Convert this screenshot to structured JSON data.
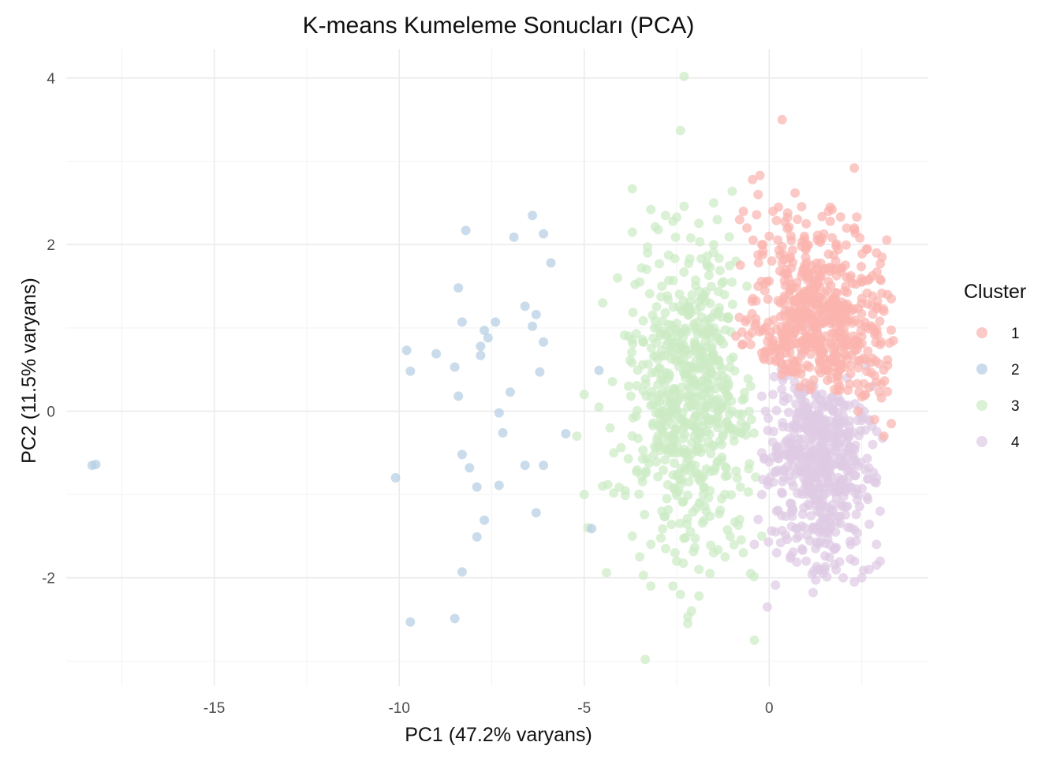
{
  "chart_data": {
    "type": "scatter",
    "title": "K-means Kumeleme Sonucları (PCA)",
    "xlabel": "PC1 (47.2% varyans)",
    "ylabel": "PC2 (11.5% varyans)",
    "xlim": [
      -19,
      4.3
    ],
    "ylim": [
      -3.3,
      4.35
    ],
    "x_ticks": [
      -15,
      -10,
      -5,
      0
    ],
    "y_ticks": [
      -2,
      0,
      2,
      4
    ],
    "x_tick_labels": [
      "-15",
      "-10",
      "-5",
      "0"
    ],
    "y_tick_labels": [
      "-2",
      "0",
      "2",
      "4"
    ],
    "grid": true,
    "legend": {
      "title": "Cluster",
      "position": "right"
    },
    "point_alpha": 0.7,
    "series": [
      {
        "name": "1",
        "color": "#fbb4ae",
        "points": [
          [
            0.35,
            3.5
          ],
          [
            2.3,
            2.92
          ],
          [
            -0.25,
            2.83
          ],
          [
            0.7,
            2.62
          ],
          [
            -0.45,
            2.78
          ],
          [
            1.65,
            2.45
          ],
          [
            1.7,
            2.42
          ],
          [
            1.6,
            2.4
          ],
          [
            1.65,
            2.28
          ],
          [
            2.3,
            2.2
          ],
          [
            1.0,
            2.25
          ],
          [
            0.95,
            2.1
          ],
          [
            1.3,
            2.06
          ],
          [
            2.45,
            2.08
          ],
          [
            2.65,
            1.95
          ],
          [
            2.9,
            1.9
          ],
          [
            3.05,
            1.85
          ],
          [
            -0.6,
            2.2
          ],
          [
            -0.8,
            2.3
          ],
          [
            -0.7,
            2.4
          ],
          [
            0.1,
            2.4
          ],
          [
            0.25,
            2.45
          ],
          [
            0.5,
            2.38
          ],
          [
            -0.3,
            2.6
          ],
          [
            0.0,
            2.1
          ],
          [
            -0.2,
            2.0
          ],
          [
            0.6,
            2.05
          ],
          [
            1.25,
            1.7
          ],
          [
            2.5,
            1.55
          ],
          [
            3.2,
            1.4
          ],
          [
            3.3,
            1.35
          ],
          [
            3.1,
            1.2
          ],
          [
            0.4,
            1.82
          ],
          [
            1.8,
            1.8
          ],
          [
            2.0,
            1.2
          ],
          [
            2.8,
            1.0
          ],
          [
            2.6,
            0.62
          ],
          [
            3.2,
            0.55
          ],
          [
            2.6,
            0.2
          ],
          [
            2.9,
            0.35
          ],
          [
            2.85,
            -0.1
          ],
          [
            3.3,
            -0.15
          ],
          [
            3.1,
            -0.3
          ],
          [
            0.0,
            0.9
          ],
          [
            -0.2,
            0.7
          ],
          [
            -0.5,
            0.8
          ],
          [
            -0.9,
            0.9
          ],
          [
            1.2,
            1.1
          ],
          [
            0.9,
            0.85
          ],
          [
            1.4,
            0.7
          ],
          [
            1.8,
            0.6
          ],
          [
            2.2,
            0.45
          ],
          [
            1.9,
            0.3
          ],
          [
            2.4,
            0.0
          ],
          [
            0.5,
            0.95
          ],
          [
            0.3,
            1.3
          ],
          [
            -0.3,
            1.5
          ],
          [
            -0.6,
            1.1
          ],
          [
            2.1,
            0.85
          ],
          [
            3.0,
            0.8
          ]
        ],
        "cloud": {
          "x": [
            -0.9,
            3.3
          ],
          "y": [
            -0.4,
            2.3
          ],
          "n": 540,
          "boundary": "right-of-3-above-4",
          "seed": 11
        }
      },
      {
        "name": "2",
        "color": "#b3cde3",
        "points": [
          [
            -18.3,
            -0.65
          ],
          [
            -18.2,
            -0.64
          ],
          [
            -6.4,
            2.35
          ],
          [
            -8.2,
            2.17
          ],
          [
            -6.1,
            2.13
          ],
          [
            -6.9,
            2.09
          ],
          [
            -5.9,
            1.78
          ],
          [
            -8.4,
            1.48
          ],
          [
            -6.6,
            1.26
          ],
          [
            -6.3,
            1.16
          ],
          [
            -7.4,
            1.07
          ],
          [
            -8.3,
            1.07
          ],
          [
            -6.4,
            1.02
          ],
          [
            -7.7,
            0.97
          ],
          [
            -7.6,
            0.88
          ],
          [
            -6.1,
            0.83
          ],
          [
            -7.8,
            0.78
          ],
          [
            -9.8,
            0.73
          ],
          [
            -9.0,
            0.69
          ],
          [
            -7.8,
            0.67
          ],
          [
            -8.5,
            0.53
          ],
          [
            -4.6,
            0.49
          ],
          [
            -6.2,
            0.47
          ],
          [
            -9.7,
            0.48
          ],
          [
            -7.0,
            0.23
          ],
          [
            -8.4,
            0.18
          ],
          [
            -7.3,
            -0.02
          ],
          [
            -7.2,
            -0.26
          ],
          [
            -5.5,
            -0.27
          ],
          [
            -8.3,
            -0.52
          ],
          [
            -6.6,
            -0.65
          ],
          [
            -6.1,
            -0.65
          ],
          [
            -8.1,
            -0.68
          ],
          [
            -10.1,
            -0.8
          ],
          [
            -7.3,
            -0.89
          ],
          [
            -7.9,
            -0.91
          ],
          [
            -7.7,
            -1.31
          ],
          [
            -6.3,
            -1.22
          ],
          [
            -4.8,
            -1.41
          ],
          [
            -7.9,
            -1.51
          ],
          [
            -8.3,
            -1.93
          ],
          [
            -8.5,
            -2.49
          ],
          [
            -9.7,
            -2.53
          ]
        ]
      },
      {
        "name": "3",
        "color": "#ccebc5",
        "points": [
          [
            -2.3,
            4.02
          ],
          [
            -2.4,
            3.37
          ],
          [
            -3.7,
            2.67
          ],
          [
            -1.0,
            2.64
          ],
          [
            -2.3,
            2.46
          ],
          [
            -1.5,
            2.5
          ],
          [
            -3.2,
            2.42
          ],
          [
            -2.8,
            2.35
          ],
          [
            -2.5,
            2.33
          ],
          [
            -2.6,
            2.28
          ],
          [
            -1.4,
            2.3
          ],
          [
            -3.0,
            2.18
          ],
          [
            -3.7,
            2.15
          ],
          [
            -1.5,
            2.0
          ],
          [
            -4.1,
            1.6
          ],
          [
            -3.5,
            1.55
          ],
          [
            -2.9,
            1.5
          ],
          [
            -4.5,
            1.3
          ],
          [
            -3.1,
            1.0
          ],
          [
            -3.8,
            0.9
          ],
          [
            -5.0,
            0.2
          ],
          [
            -4.6,
            0.05
          ],
          [
            -5.2,
            -0.3
          ],
          [
            -4.2,
            -0.5
          ],
          [
            -4.5,
            -0.9
          ],
          [
            -5.0,
            -1.0
          ],
          [
            -4.9,
            -1.4
          ],
          [
            -3.7,
            -1.5
          ],
          [
            -3.2,
            -1.6
          ],
          [
            -2.5,
            -1.8
          ],
          [
            -3.5,
            -1.75
          ],
          [
            -3.4,
            -1.97
          ],
          [
            -4.4,
            -1.94
          ],
          [
            -1.9,
            -1.9
          ],
          [
            -1.6,
            -1.95
          ],
          [
            -0.5,
            -1.95
          ],
          [
            -2.6,
            -2.1
          ],
          [
            -3.2,
            -2.1
          ],
          [
            -2.4,
            -2.2
          ],
          [
            -1.9,
            -2.22
          ],
          [
            -2.1,
            -2.4
          ],
          [
            -2.2,
            -2.47
          ],
          [
            -2.2,
            -2.55
          ],
          [
            -0.4,
            -2.75
          ],
          [
            -3.35,
            -2.98
          ],
          [
            -0.8,
            -1.3
          ],
          [
            -0.2,
            -1.5
          ],
          [
            -1.0,
            0.0
          ],
          [
            -0.5,
            0.3
          ],
          [
            -0.9,
            1.8
          ],
          [
            -0.6,
            1.5
          ],
          [
            -1.5,
            1.0
          ],
          [
            -2.0,
            0.5
          ],
          [
            -2.6,
            -0.5
          ],
          [
            -1.2,
            -1.0
          ],
          [
            -3.8,
            0.3
          ],
          [
            -4.3,
            -0.2
          ],
          [
            -0.7,
            -1.7
          ],
          [
            -1.5,
            -1.7
          ],
          [
            -2.9,
            -1.2
          ]
        ],
        "cloud": {
          "x": [
            -4.0,
            -0.2
          ],
          "y": [
            -1.8,
            2.2
          ],
          "n": 600,
          "boundary": "left-of-1-and-4",
          "seed": 29
        }
      },
      {
        "name": "4",
        "color": "#decbe4",
        "points": [
          [
            -0.05,
            -2.35
          ],
          [
            1.45,
            -1.95
          ],
          [
            2.5,
            -2.0
          ],
          [
            2.7,
            -1.9
          ],
          [
            2.3,
            -2.05
          ],
          [
            2.0,
            -2.0
          ],
          [
            1.5,
            -1.9
          ],
          [
            1.0,
            -1.8
          ],
          [
            2.9,
            -1.85
          ],
          [
            3.0,
            -1.8
          ],
          [
            0.2,
            -1.7
          ],
          [
            -0.4,
            -1.6
          ],
          [
            -0.3,
            -1.3
          ],
          [
            -0.2,
            -1.0
          ],
          [
            2.9,
            -1.6
          ],
          [
            3.0,
            -1.2
          ],
          [
            2.9,
            -0.8
          ],
          [
            2.8,
            -0.4
          ],
          [
            2.7,
            -0.1
          ],
          [
            2.8,
            0.3
          ],
          [
            2.6,
            0.55
          ],
          [
            0.95,
            1.05
          ],
          [
            0.6,
            1.0
          ],
          [
            0.9,
            0.7
          ],
          [
            0.1,
            0.2
          ],
          [
            -0.1,
            0.0
          ],
          [
            -0.2,
            -0.5
          ],
          [
            0.5,
            0.5
          ],
          [
            1.2,
            0.3
          ],
          [
            1.8,
            0.1
          ],
          [
            0.4,
            -0.8
          ],
          [
            1.3,
            -1.2
          ],
          [
            2.2,
            -1.4
          ],
          [
            0.8,
            -1.5
          ],
          [
            1.9,
            -0.6
          ],
          [
            0.7,
            -0.2
          ],
          [
            2.4,
            -1.0
          ],
          [
            1.5,
            -0.1
          ],
          [
            0.2,
            -1.2
          ],
          [
            2.1,
            0.4
          ]
        ],
        "cloud": {
          "x": [
            -0.3,
            3.0
          ],
          "y": [
            -2.0,
            1.0
          ],
          "n": 520,
          "boundary": "right-of-3-below-1",
          "seed": 47
        }
      }
    ]
  }
}
